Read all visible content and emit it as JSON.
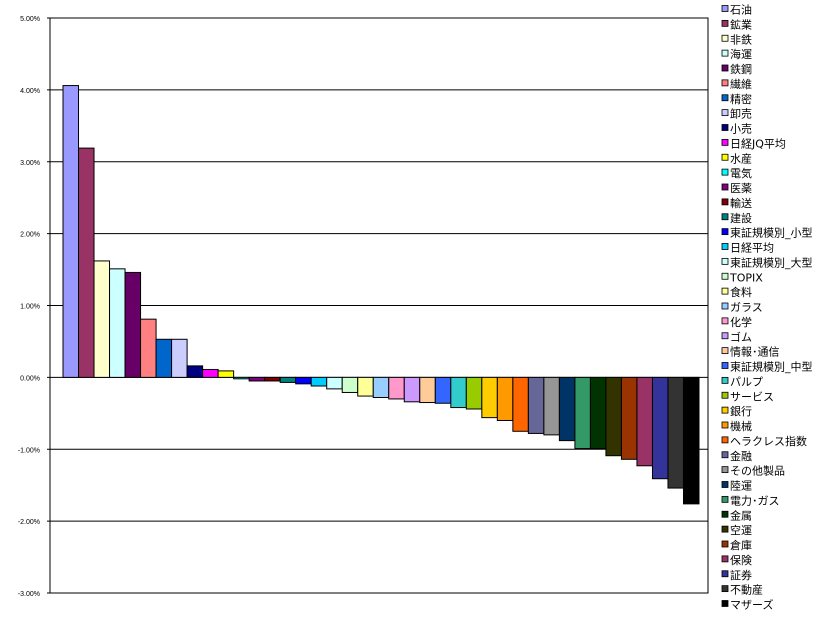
{
  "chart_data": {
    "type": "bar",
    "title": "",
    "xlabel": "",
    "ylabel": "",
    "ylim": [
      -0.03,
      0.05
    ],
    "yticks": [
      "5.00%",
      "4.00%",
      "3.00%",
      "2.00%",
      "1.00%",
      "0.00%",
      "-1.00%",
      "-2.00%",
      "-3.00%"
    ],
    "grid": true,
    "legend_position": "right",
    "categories": [
      "石油",
      "鉱業",
      "非鉄",
      "海運",
      "鉄鋼",
      "繊維",
      "精密",
      "卸売",
      "小売",
      "日経JQ平均",
      "水産",
      "電気",
      "医薬",
      "輸送",
      "建設",
      "東証規模別_小型",
      "日経平均",
      "東証規模別_大型",
      "TOPIX",
      "食料",
      "ガラス",
      "化学",
      "ゴム",
      "情報･通信",
      "東証規模別_中型",
      "パルプ",
      "サービス",
      "銀行",
      "機械",
      "ヘラクレス指数",
      "金融",
      "その他製品",
      "陸運",
      "電力･ガス",
      "金属",
      "空運",
      "倉庫",
      "保険",
      "証券",
      "不動産",
      "マザーズ"
    ],
    "values": [
      4.06,
      3.19,
      1.62,
      1.51,
      1.46,
      0.81,
      0.53,
      0.53,
      0.16,
      0.11,
      0.09,
      -0.02,
      -0.05,
      -0.05,
      -0.07,
      -0.09,
      -0.12,
      -0.16,
      -0.21,
      -0.26,
      -0.28,
      -0.3,
      -0.34,
      -0.35,
      -0.36,
      -0.42,
      -0.44,
      -0.56,
      -0.6,
      -0.75,
      -0.78,
      -0.8,
      -0.88,
      -0.99,
      -0.99,
      -1.09,
      -1.14,
      -1.23,
      -1.41,
      -1.54,
      -1.76
    ],
    "value_unit": "%",
    "colors": [
      "#9999ff",
      "#993366",
      "#ffffcc",
      "#ccffff",
      "#660066",
      "#ff8080",
      "#0066cc",
      "#ccccff",
      "#000080",
      "#ff00ff",
      "#ffff00",
      "#00ffff",
      "#800080",
      "#800000",
      "#008080",
      "#0000ff",
      "#00ccff",
      "#ccffff",
      "#ccffcc",
      "#ffff99",
      "#99ccff",
      "#ff99cc",
      "#cc99ff",
      "#ffcc99",
      "#3366ff",
      "#33cccc",
      "#99cc00",
      "#ffcc00",
      "#ff9900",
      "#ff6600",
      "#666699",
      "#969696",
      "#003366",
      "#339966",
      "#003300",
      "#333300",
      "#993300",
      "#993366",
      "#333399",
      "#333333",
      "#000000"
    ]
  }
}
